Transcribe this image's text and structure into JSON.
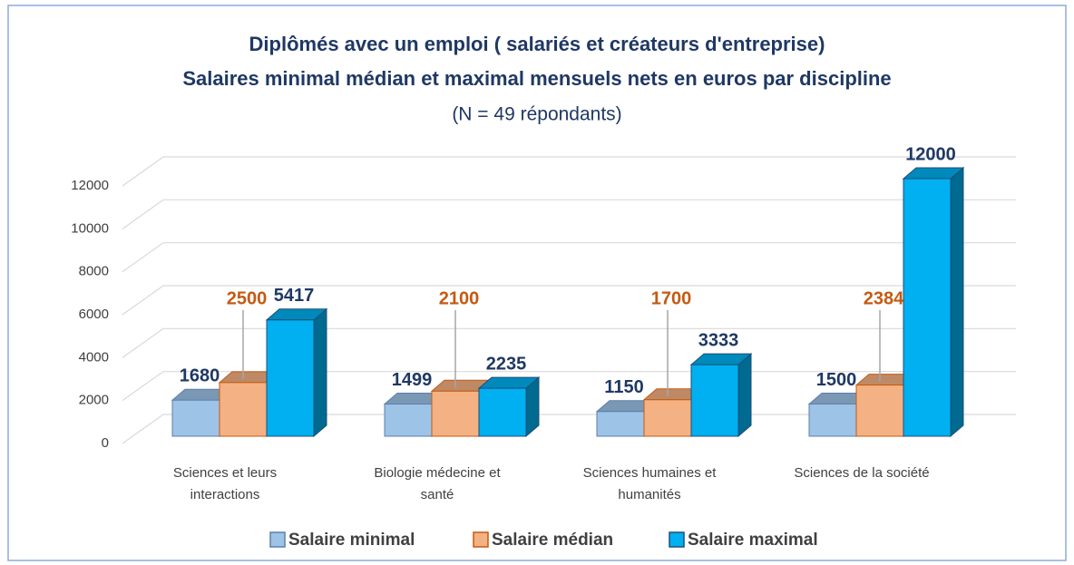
{
  "chart_data": {
    "type": "bar3d",
    "title": "Diplômés avec un emploi ( salariés et créateurs d'entreprise)",
    "subtitle": "Salaires minimal médian et maximal mensuels nets en euros par discipline",
    "note": "(N = 49 répondants)",
    "categories": [
      "Sciences et leurs interactions",
      "Biologie médecine et santé",
      "Sciences humaines et humanités",
      "Sciences de la société"
    ],
    "series": [
      {
        "name": "Salaire minimal",
        "color": "#9dc3e6",
        "values": [
          1680,
          1499,
          1150,
          1500
        ]
      },
      {
        "name": "Salaire médian",
        "color": "#f4b183",
        "values": [
          2500,
          2100,
          1700,
          2384
        ]
      },
      {
        "name": "Salaire maximal",
        "color": "#00b0f0",
        "values": [
          5417,
          2235,
          3333,
          12000
        ]
      }
    ],
    "ylim": [
      0,
      12000
    ],
    "yticks": [
      0,
      2000,
      4000,
      6000,
      8000,
      10000,
      12000
    ],
    "grid": true,
    "legend": "bottom"
  }
}
